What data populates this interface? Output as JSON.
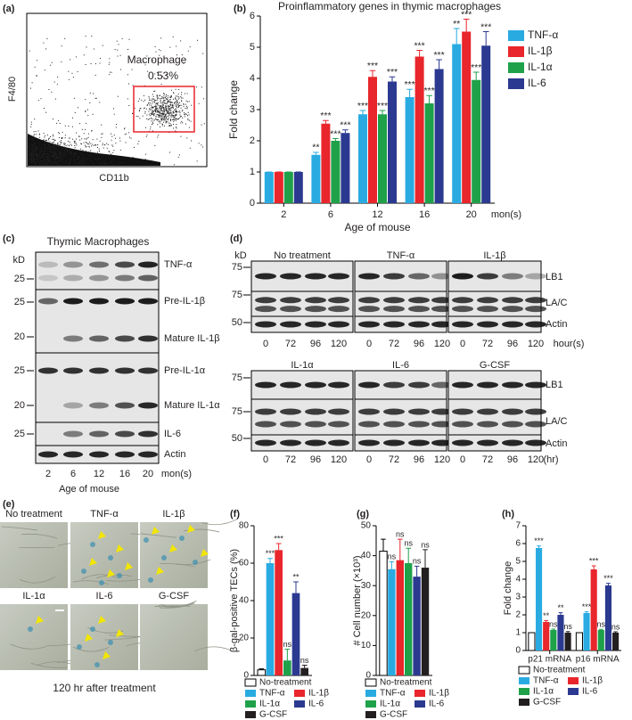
{
  "panel_a": {
    "label": "(a)",
    "y_label": "F4/80",
    "x_label": "CD11b",
    "gate": "Macrophage",
    "gate_percent": "0.53%"
  },
  "panel_c": {
    "label": "(c)",
    "title": "Thymic Macrophages",
    "unit": "kD",
    "markers": [
      "25",
      "25",
      "20",
      "25",
      "20",
      "25"
    ],
    "proteins": [
      "TNF-α",
      "Pre-IL-1β",
      "Mature IL-1β",
      "Pre-IL-1α",
      "Mature IL-1α",
      "IL-6",
      "Actin"
    ],
    "lanes": [
      "2",
      "6",
      "12",
      "16",
      "20"
    ],
    "lane_unit": "mon(s)",
    "x_label": "Age of mouse"
  },
  "panel_d": {
    "label": "(d)",
    "unit": "kD",
    "groups": [
      {
        "name": "No treatment",
        "lanes": [
          "0",
          "72",
          "96",
          "120"
        ]
      },
      {
        "name": "TNF-α",
        "lanes": [
          "0",
          "72",
          "96",
          "120"
        ]
      },
      {
        "name": "IL-1β",
        "lanes": [
          "0",
          "72",
          "96",
          "120"
        ]
      },
      {
        "name": "IL-1α",
        "lanes": [
          "0",
          "72",
          "96",
          "120"
        ]
      },
      {
        "name": "IL-6",
        "lanes": [
          "0",
          "72",
          "96",
          "120"
        ]
      },
      {
        "name": "G-CSF",
        "lanes": [
          "0",
          "72",
          "96",
          "120"
        ]
      }
    ],
    "time_unit_top": "hour(s)",
    "time_unit_bottom": "(hr)",
    "markers_top": [
      "75",
      "75",
      "50"
    ],
    "markers_bottom": [
      "75",
      "75",
      "50"
    ],
    "proteins_top": [
      "LB1",
      "LA/C",
      "Actin"
    ],
    "proteins_bottom": [
      "LB1",
      "LA/C",
      "Actin"
    ]
  },
  "panel_e": {
    "label": "(e)",
    "conditions": [
      "No treatment",
      "TNF-α",
      "IL-1β",
      "IL-1α",
      "IL-6",
      "G-CSF"
    ],
    "caption": "120 hr after treatment"
  },
  "chart_data": [
    {
      "type": "bar",
      "panel_label": "(b)",
      "title": "Proinflammatory genes in thymic macrophages",
      "x_label": "Age of mouse",
      "x_unit": "mon(s)",
      "y_label": "Fold change",
      "categories": [
        "2",
        "6",
        "12",
        "16",
        "20"
      ],
      "ylim": [
        0,
        6
      ],
      "yticks": [
        0,
        1,
        2,
        3,
        4,
        5,
        6
      ],
      "series": [
        {
          "name": "TNF-α",
          "color": "#29abe2",
          "values": [
            1,
            1.55,
            2.85,
            3.4,
            5.1
          ],
          "errors": [
            0,
            0.08,
            0.12,
            0.25,
            0.5
          ],
          "significance": [
            null,
            "**",
            "***",
            "***",
            "**"
          ]
        },
        {
          "name": "IL-1β",
          "color": "#e8262b",
          "values": [
            1,
            2.55,
            4.05,
            4.7,
            5.5
          ],
          "errors": [
            0,
            0.1,
            0.2,
            0.2,
            0.4
          ],
          "significance": [
            null,
            "***",
            "***",
            "***",
            "***"
          ]
        },
        {
          "name": "IL-1α",
          "color": "#1fa14a",
          "values": [
            1,
            2.0,
            2.85,
            3.2,
            3.95
          ],
          "errors": [
            0,
            0.07,
            0.12,
            0.25,
            0.25
          ],
          "significance": [
            null,
            "***",
            "***",
            "***",
            "***"
          ]
        },
        {
          "name": "IL-6",
          "color": "#2b3990",
          "values": [
            1,
            2.25,
            3.9,
            4.3,
            5.05
          ],
          "errors": [
            0,
            0.1,
            0.15,
            0.3,
            0.45
          ],
          "significance": [
            null,
            "***",
            "***",
            "***",
            "***"
          ]
        }
      ]
    },
    {
      "type": "bar",
      "panel_label": "(f)",
      "y_label": "β-gal-positive TECs (%)",
      "categories": [
        null
      ],
      "ylim": [
        0,
        80
      ],
      "yticks": [
        0,
        20,
        40,
        60,
        80
      ],
      "series": [
        {
          "name": "No-treatment",
          "color": "#ffffff",
          "values": [
            3
          ],
          "errors": [
            0.5
          ],
          "significance": [
            null
          ]
        },
        {
          "name": "TNF-α",
          "color": "#29abe2",
          "values": [
            60
          ],
          "errors": [
            2.5
          ],
          "significance": [
            "***"
          ]
        },
        {
          "name": "IL-1β",
          "color": "#e8262b",
          "values": [
            67
          ],
          "errors": [
            3.5
          ],
          "significance": [
            "***"
          ]
        },
        {
          "name": "IL-1α",
          "color": "#1fa14a",
          "values": [
            8
          ],
          "errors": [
            6
          ],
          "significance": [
            "ns"
          ]
        },
        {
          "name": "IL-6",
          "color": "#2b3990",
          "values": [
            44
          ],
          "errors": [
            6
          ],
          "significance": [
            "**"
          ]
        },
        {
          "name": "G-CSF",
          "color": "#231f20",
          "values": [
            4
          ],
          "errors": [
            1.5
          ],
          "significance": [
            "ns"
          ]
        }
      ]
    },
    {
      "type": "bar",
      "panel_label": "(g)",
      "y_label": "# Cell number (×10³)",
      "categories": [
        null
      ],
      "ylim": [
        0,
        50
      ],
      "yticks": [
        0,
        10,
        20,
        30,
        40,
        50
      ],
      "series": [
        {
          "name": "No-treatment",
          "color": "#ffffff",
          "values": [
            41.5
          ],
          "errors": [
            4
          ],
          "significance": [
            null
          ]
        },
        {
          "name": "TNF-α",
          "color": "#29abe2",
          "values": [
            35.5
          ],
          "errors": [
            2.5
          ],
          "significance": [
            "ns"
          ]
        },
        {
          "name": "IL-1β",
          "color": "#e8262b",
          "values": [
            38.5
          ],
          "errors": [
            7
          ],
          "significance": [
            "ns"
          ]
        },
        {
          "name": "IL-1α",
          "color": "#1fa14a",
          "values": [
            37.5
          ],
          "errors": [
            5
          ],
          "significance": [
            "ns"
          ]
        },
        {
          "name": "IL-6",
          "color": "#2b3990",
          "values": [
            33
          ],
          "errors": [
            3.5
          ],
          "significance": [
            "ns"
          ]
        },
        {
          "name": "G-CSF",
          "color": "#231f20",
          "values": [
            36
          ],
          "errors": [
            6
          ],
          "significance": [
            "ns"
          ]
        }
      ]
    },
    {
      "type": "bar",
      "panel_label": "(h)",
      "y_label": "Fold change",
      "categories": [
        "p21 mRNA",
        "p16 mRNA"
      ],
      "ylim": [
        0,
        7
      ],
      "yticks": [
        0,
        1,
        2,
        3,
        4,
        5,
        6,
        7
      ],
      "series": [
        {
          "name": "No-treatment",
          "color": "#ffffff",
          "values": [
            1,
            1
          ],
          "errors": [
            0,
            0
          ],
          "significance": [
            null,
            null
          ]
        },
        {
          "name": "TNF-α",
          "color": "#29abe2",
          "values": [
            5.75,
            2.1
          ],
          "errors": [
            0.12,
            0.07
          ],
          "significance": [
            "***",
            "***"
          ]
        },
        {
          "name": "IL-1β",
          "color": "#e8262b",
          "values": [
            1.6,
            4.55
          ],
          "errors": [
            0.08,
            0.2
          ],
          "significance": [
            "**",
            "***"
          ]
        },
        {
          "name": "IL-1α",
          "color": "#1fa14a",
          "values": [
            1.15,
            1.15
          ],
          "errors": [
            0.05,
            0.04
          ],
          "significance": [
            "ns",
            "ns"
          ]
        },
        {
          "name": "IL-6",
          "color": "#2b3990",
          "values": [
            2.0,
            3.65
          ],
          "errors": [
            0.12,
            0.12
          ],
          "significance": [
            "**",
            "***"
          ]
        },
        {
          "name": "G-CSF",
          "color": "#231f20",
          "values": [
            1.0,
            1.0
          ],
          "errors": [
            0.06,
            0.05
          ],
          "significance": [
            "ns",
            "ns"
          ]
        }
      ]
    }
  ]
}
